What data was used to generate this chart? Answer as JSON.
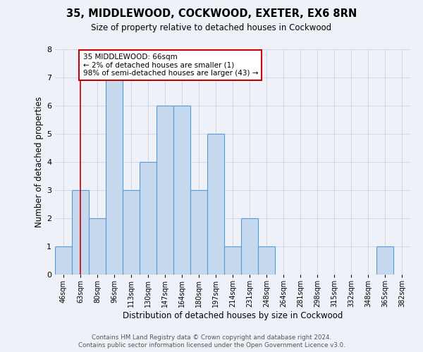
{
  "title": "35, MIDDLEWOOD, COCKWOOD, EXETER, EX6 8RN",
  "subtitle": "Size of property relative to detached houses in Cockwood",
  "xlabel": "Distribution of detached houses by size in Cockwood",
  "ylabel": "Number of detached properties",
  "bin_labels": [
    "46sqm",
    "63sqm",
    "80sqm",
    "96sqm",
    "113sqm",
    "130sqm",
    "147sqm",
    "164sqm",
    "180sqm",
    "197sqm",
    "214sqm",
    "231sqm",
    "248sqm",
    "264sqm",
    "281sqm",
    "298sqm",
    "315sqm",
    "332sqm",
    "348sqm",
    "365sqm",
    "382sqm"
  ],
  "counts": [
    1,
    3,
    2,
    7,
    3,
    4,
    6,
    6,
    3,
    5,
    1,
    2,
    1,
    0,
    0,
    0,
    0,
    0,
    0,
    1,
    0
  ],
  "bar_color": "#c5d8ed",
  "bar_edge_color": "#5b9bd5",
  "marker_bin_index": 1,
  "marker_color": "#cc0000",
  "annotation_text": "35 MIDDLEWOOD: 66sqm\n← 2% of detached houses are smaller (1)\n98% of semi-detached houses are larger (43) →",
  "annotation_box_color": "#ffffff",
  "annotation_box_edge": "#cc0000",
  "ylim": [
    0,
    8
  ],
  "yticks": [
    0,
    1,
    2,
    3,
    4,
    5,
    6,
    7,
    8
  ],
  "grid_color": "#c8d4e8",
  "background_color": "#eef2f8",
  "footer_line1": "Contains HM Land Registry data © Crown copyright and database right 2024.",
  "footer_line2": "Contains public sector information licensed under the Open Government Licence v3.0."
}
